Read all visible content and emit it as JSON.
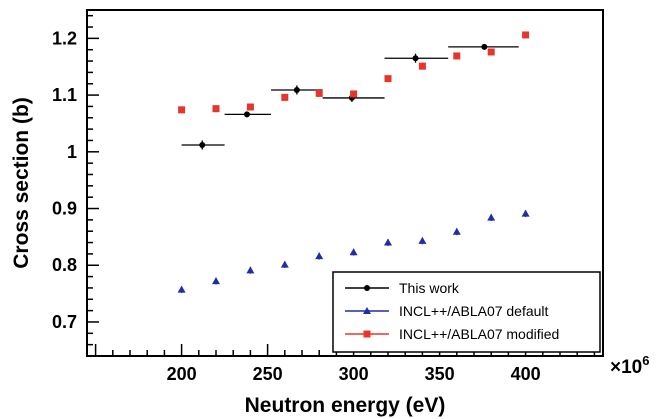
{
  "chart_data": {
    "type": "scatter",
    "xlabel": "Neutron energy (eV)",
    "ylabel": "Cross section (b)",
    "x_multiplier_label": "×10",
    "x_multiplier_exponent": "6",
    "xlim": [
      145,
      445
    ],
    "ylim": [
      0.64,
      1.25
    ],
    "x_ticks": [
      200,
      250,
      300,
      350,
      400
    ],
    "x_tick_labels": [
      "200",
      "250",
      "300",
      "350",
      "400"
    ],
    "y_ticks": [
      0.7,
      0.8,
      0.9,
      1.0,
      1.1,
      1.2
    ],
    "y_tick_labels": [
      "0.7",
      "0.8",
      "0.9",
      "1",
      "1.1",
      "1.2"
    ],
    "grid": false,
    "legend_position": "bottom-right",
    "series": [
      {
        "name": "This work",
        "color": "#000000",
        "marker": "circle",
        "points": [
          {
            "x": 212,
            "y": 1.012,
            "xlow": 200,
            "xhigh": 225,
            "yerr": 0.008
          },
          {
            "x": 238,
            "y": 1.066,
            "xlow": 225,
            "xhigh": 252,
            "yerr": 0.005
          },
          {
            "x": 267,
            "y": 1.109,
            "xlow": 252,
            "xhigh": 282,
            "yerr": 0.008
          },
          {
            "x": 299,
            "y": 1.095,
            "xlow": 282,
            "xhigh": 318,
            "yerr": 0.007
          },
          {
            "x": 336,
            "y": 1.165,
            "xlow": 318,
            "xhigh": 355,
            "yerr": 0.008
          },
          {
            "x": 376,
            "y": 1.185,
            "xlow": 355,
            "xhigh": 396,
            "yerr": 0.005
          }
        ]
      },
      {
        "name": "INCL++/ABLA07 default",
        "color": "#1f2ea6",
        "marker": "triangle",
        "points": [
          {
            "x": 200,
            "y": 0.757,
            "yerr": 0.006
          },
          {
            "x": 220,
            "y": 0.772,
            "yerr": 0.006
          },
          {
            "x": 240,
            "y": 0.791,
            "yerr": 0.006
          },
          {
            "x": 260,
            "y": 0.801,
            "yerr": 0.006
          },
          {
            "x": 280,
            "y": 0.816,
            "yerr": 0.006
          },
          {
            "x": 300,
            "y": 0.823,
            "yerr": 0.006
          },
          {
            "x": 320,
            "y": 0.84,
            "yerr": 0.006
          },
          {
            "x": 340,
            "y": 0.843,
            "yerr": 0.006
          },
          {
            "x": 360,
            "y": 0.859,
            "yerr": 0.006
          },
          {
            "x": 380,
            "y": 0.884,
            "yerr": 0.006
          },
          {
            "x": 400,
            "y": 0.891,
            "yerr": 0.006
          }
        ]
      },
      {
        "name": "INCL++/ABLA07 modified",
        "color": "#e8352b",
        "marker": "square",
        "points": [
          {
            "x": 200,
            "y": 1.074,
            "yerr": 0.006
          },
          {
            "x": 220,
            "y": 1.076,
            "yerr": 0.006
          },
          {
            "x": 240,
            "y": 1.079,
            "yerr": 0.006
          },
          {
            "x": 260,
            "y": 1.096,
            "yerr": 0.006
          },
          {
            "x": 280,
            "y": 1.103,
            "yerr": 0.006
          },
          {
            "x": 300,
            "y": 1.102,
            "yerr": 0.006
          },
          {
            "x": 320,
            "y": 1.129,
            "yerr": 0.006
          },
          {
            "x": 340,
            "y": 1.151,
            "yerr": 0.006
          },
          {
            "x": 360,
            "y": 1.169,
            "yerr": 0.006
          },
          {
            "x": 380,
            "y": 1.176,
            "yerr": 0.006
          },
          {
            "x": 400,
            "y": 1.206,
            "yerr": 0.006
          }
        ]
      }
    ]
  }
}
